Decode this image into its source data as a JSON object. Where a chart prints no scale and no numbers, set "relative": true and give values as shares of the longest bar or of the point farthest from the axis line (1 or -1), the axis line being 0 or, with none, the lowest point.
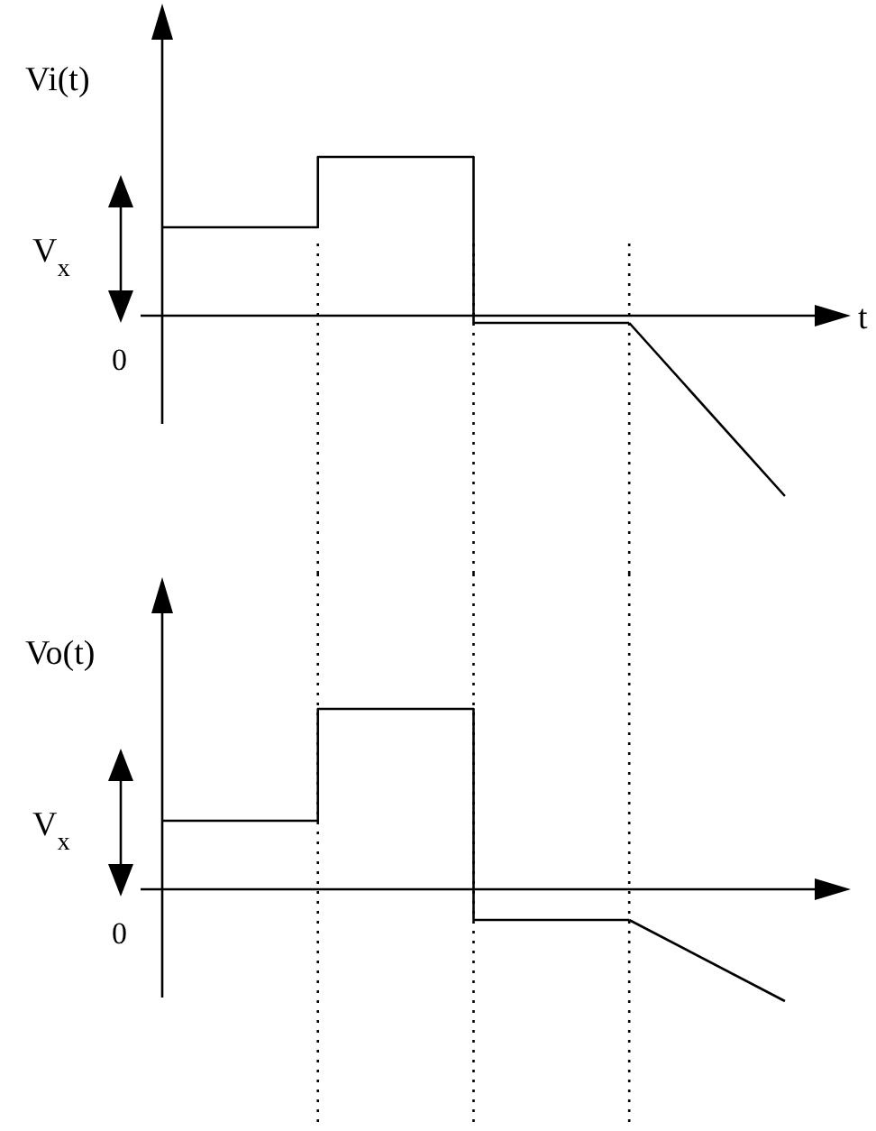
{
  "chart_data": [
    {
      "type": "line",
      "relative": true,
      "ylabel": "Vi(t)",
      "xlabel": "t",
      "annotations": [
        "V$_{x}$",
        "0"
      ],
      "categories": [
        null,
        null,
        null,
        null,
        null
      ],
      "series": [
        {
          "type": "step",
          "color": "#000000",
          "values": [
            0.49,
            0.88,
            -0.04,
            -0.04,
            null
          ]
        },
        {
          "type": "line",
          "color": "#000000",
          "values": [
            null,
            null,
            null,
            -0.04,
            -1
          ]
        }
      ],
      "grid": "x",
      "marker": "none",
      "line_style": "solid"
    },
    {
      "type": "line",
      "relative": true,
      "ylabel": "Vo(t)",
      "annotations": [
        "V$_{x}$",
        "0"
      ],
      "categories": [
        null,
        null,
        null,
        null,
        null
      ],
      "series": [
        {
          "type": "step",
          "color": "#000000",
          "values": [
            0.38,
            1,
            -0.17,
            -0.17,
            null
          ]
        },
        {
          "type": "line",
          "color": "#000000",
          "values": [
            null,
            null,
            null,
            -0.17,
            -0.62
          ]
        }
      ],
      "grid": "x",
      "marker": "none",
      "line_style": "solid"
    }
  ]
}
